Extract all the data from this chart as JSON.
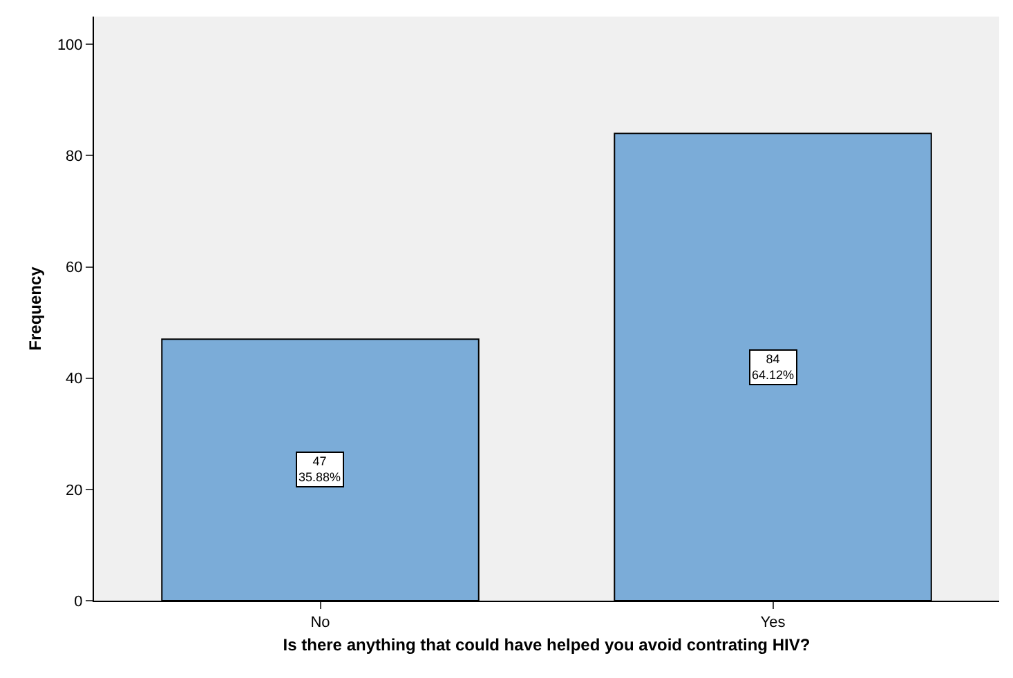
{
  "chart_data": {
    "type": "bar",
    "xlabel": "Is there anything that could have helped you avoid contrating HIV?",
    "ylabel": "Frequency",
    "categories": [
      "No",
      "Yes"
    ],
    "values": [
      47,
      84
    ],
    "color": "#7bacd8",
    "value_labels": [
      "47\n35.88%",
      "84\n64.12%"
    ],
    "ylim": [
      0,
      105
    ],
    "yticks": [
      0,
      20,
      40,
      60,
      80,
      100
    ],
    "grid": false,
    "legend": false
  }
}
